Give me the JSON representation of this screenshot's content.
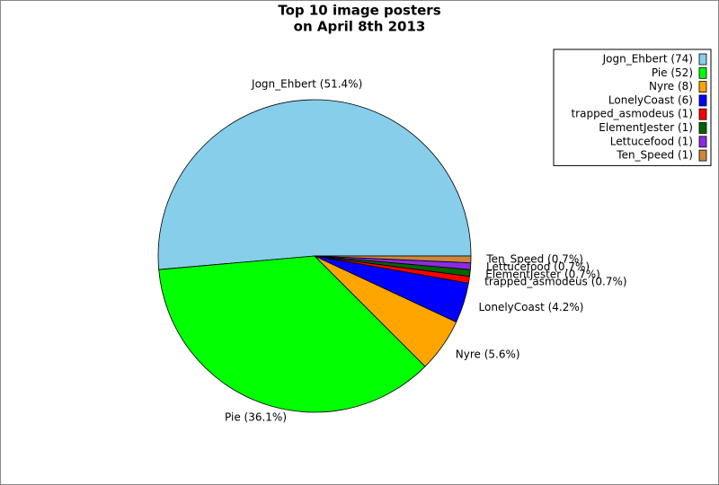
{
  "chart_data": {
    "type": "pie",
    "title": [
      "Top 10 image posters",
      "on April 8th 2013"
    ],
    "categories": [
      "Jogn_Ehbert",
      "Pie",
      "Nyre",
      "LonelyCoast",
      "trapped_asmodeus",
      "ElementJester",
      "Lettucefood",
      "Ten_Speed"
    ],
    "values": [
      74,
      52,
      8,
      6,
      1,
      1,
      1,
      1
    ],
    "slice_labels": [
      "Jogn_Ehbert (51.4%)",
      "Pie (36.1%)",
      "Nyre (5.6%)",
      "LonelyCoast (4.2%)",
      "trapped_asmodeus (0.7%)",
      "ElementJester (0.7%)",
      "Lettucefood (0.7%)",
      "Ten_Speed (0.7%)"
    ],
    "legend_labels": [
      "Jogn_Ehbert (74)",
      "Pie (52)",
      "Nyre (8)",
      "LonelyCoast (6)",
      "trapped_asmodeus (1)",
      "ElementJester (1)",
      "Lettucefood (1)",
      "Ten_Speed (1)"
    ],
    "colors": [
      "#87ceeb",
      "#00ff00",
      "#ffa500",
      "#0000ff",
      "#ff0000",
      "#006400",
      "#8a2be2",
      "#cd853f"
    ],
    "legend": "upper right"
  }
}
